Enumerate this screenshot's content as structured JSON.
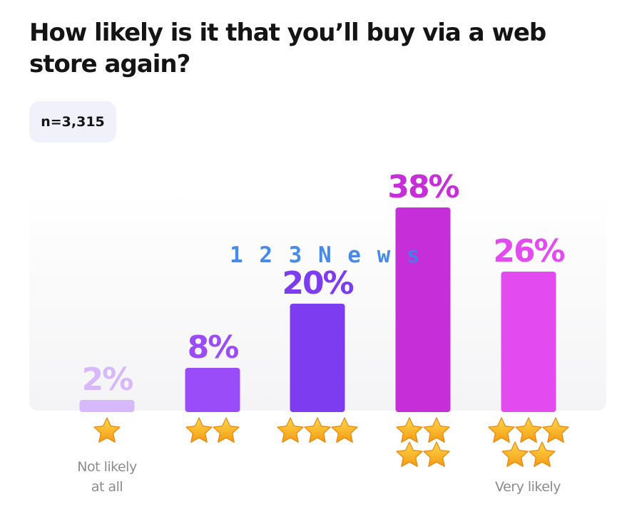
{
  "title": "How likely is it that you’ll buy via a web store again?",
  "sample": "n=3,315",
  "watermark": "1 2 3 N e w s",
  "chart_data": {
    "type": "bar",
    "categories": [
      "1 star",
      "2 stars",
      "3 stars",
      "4 stars",
      "5 stars"
    ],
    "stars": [
      1,
      2,
      3,
      4,
      5
    ],
    "values": [
      2,
      8,
      20,
      38,
      26
    ],
    "value_labels": [
      "2%",
      "8%",
      "20%",
      "38%",
      "26%"
    ],
    "colors": [
      "#d6b8fb",
      "#9a4cf8",
      "#7d3cf0",
      "#c62ed8",
      "#e34af0"
    ],
    "ylim": [
      0,
      40
    ],
    "grid": false,
    "x_end_labels": {
      "low": "Not likely at all",
      "high": "Very likely"
    }
  }
}
